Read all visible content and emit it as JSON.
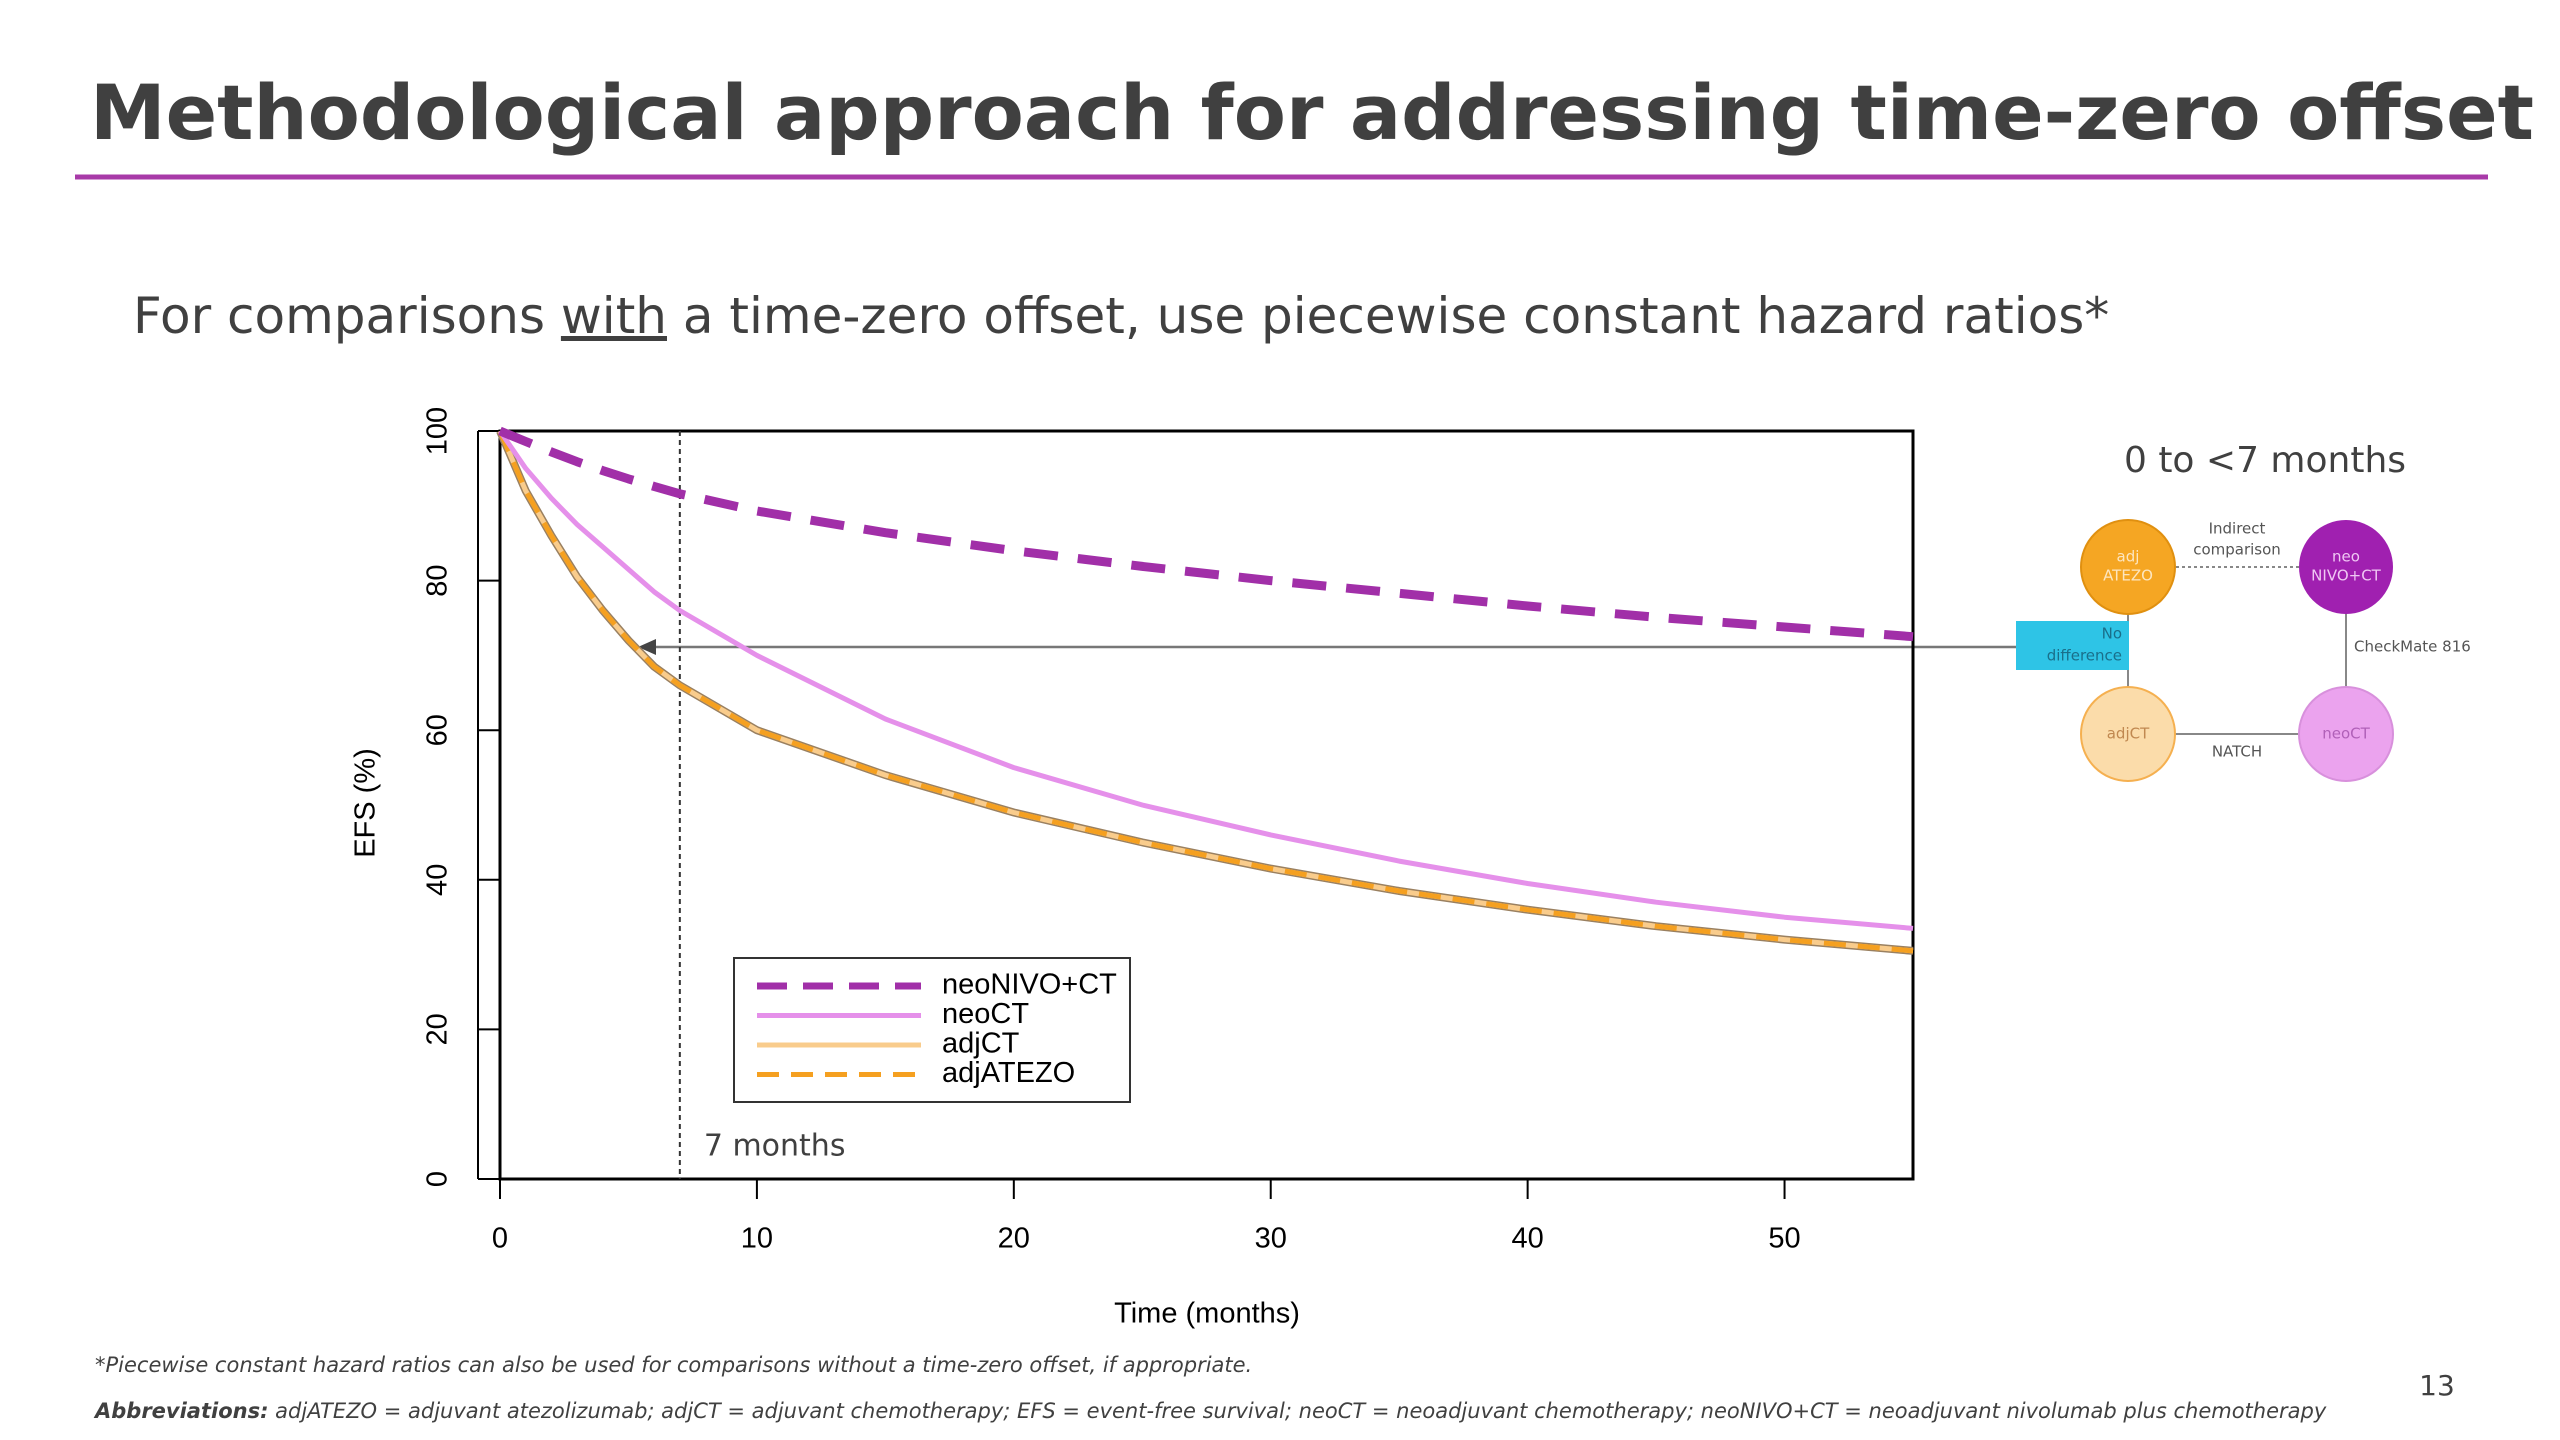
{
  "title": "Methodological approach for addressing time-zero offset",
  "subtitle": {
    "before": "For comparisons ",
    "underlined": "with",
    "after": " a time-zero offset, use piecewise constant hazard ratios*"
  },
  "chart_data": {
    "type": "line",
    "x_label": "Time (months)",
    "y_label": "EFS (%)",
    "x": [
      0,
      1,
      2,
      3,
      4,
      5,
      6,
      7,
      10,
      15,
      20,
      25,
      30,
      35,
      40,
      45,
      50,
      55
    ],
    "series": [
      {
        "name": "neoNIVO+CT",
        "color": "#a12fa8",
        "line_style": "dashed",
        "values": [
          100,
          98.6,
          97.2,
          95.9,
          94.7,
          93.6,
          92.6,
          91.6,
          89.3,
          86.4,
          84,
          81.9,
          80,
          78.3,
          76.6,
          75.1,
          73.8,
          72.5
        ]
      },
      {
        "name": "neoCT",
        "color": "#e590ea",
        "line_style": "solid",
        "values": [
          100,
          95,
          91,
          87.5,
          84.5,
          81.5,
          78.5,
          76,
          70,
          61.5,
          55,
          50,
          46,
          42.5,
          39.5,
          37,
          35,
          33.5
        ]
      },
      {
        "name": "adjCT",
        "color": "#f9cc8c",
        "line_style": "solid",
        "values": [
          100,
          92,
          86,
          80.5,
          76,
          72,
          68.5,
          66,
          60,
          54,
          49,
          45,
          41.5,
          38.5,
          36,
          33.8,
          32,
          30.5
        ]
      },
      {
        "name": "adjATEZO",
        "color": "#f5a020",
        "line_style": "dashed",
        "values": [
          100,
          92,
          86,
          80.5,
          76,
          72,
          68.5,
          66,
          60,
          54,
          49,
          45,
          41.5,
          38.5,
          36,
          33.8,
          32,
          30.5
        ]
      }
    ],
    "xlim": [
      0,
      55
    ],
    "ylim": [
      0,
      100
    ],
    "xticks": [
      0,
      10,
      20,
      30,
      40,
      50
    ],
    "yticks": [
      0,
      20,
      40,
      60,
      80,
      100
    ],
    "legend": "lower-left",
    "annotation": {
      "text": "7 months",
      "x": 7
    }
  },
  "diagram": {
    "title": "0 to <7 months",
    "nodes": [
      {
        "label": [
          "adj",
          "ATEZO"
        ]
      },
      {
        "label": [
          "neo",
          "NIVO+CT"
        ]
      },
      {
        "label": [
          "adjCT"
        ]
      },
      {
        "label": [
          "neoCT"
        ]
      }
    ],
    "edges": [
      {
        "label": [
          "Indirect",
          "comparison"
        ]
      },
      {
        "label": [
          "CheckMate 816"
        ]
      },
      {
        "label": [
          "NATCH"
        ]
      }
    ],
    "callout": [
      "No",
      "difference"
    ]
  },
  "footnote": "*Piecewise constant hazard ratios can also be used for comparisons without a time-zero offset, if appropriate.",
  "abbreviations": {
    "label": "Abbreviations:",
    "text": " adjATEZO = adjuvant atezolizumab; adjCT = adjuvant chemotherapy; EFS = event-free survival; neoCT = neoadjuvant chemotherapy; neoNIVO+CT = neoadjuvant nivolumab plus chemotherapy"
  },
  "page_number": "13"
}
